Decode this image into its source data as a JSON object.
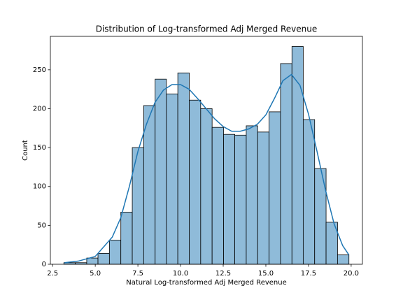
{
  "chart_data": {
    "type": "histogram",
    "title": "Distribution of Log-transformed Adj Merged Revenue",
    "xlabel": "Natural Log-transformed Adj Merged Revenue",
    "ylabel": "Count",
    "bins": [
      3.16,
      3.83,
      4.5,
      5.16,
      5.83,
      6.5,
      7.17,
      7.84,
      8.51,
      9.17,
      9.84,
      10.51,
      11.18,
      11.85,
      12.52,
      13.18,
      13.85,
      14.52,
      15.19,
      15.86,
      16.53,
      17.19,
      17.86,
      18.53,
      19.2,
      19.87
    ],
    "counts": [
      2,
      2,
      8,
      14,
      31,
      67,
      150,
      204,
      238,
      219,
      246,
      211,
      200,
      176,
      167,
      166,
      178,
      170,
      196,
      258,
      280,
      186,
      123,
      54,
      12
    ],
    "color": "#8fbbd9",
    "edgecolor": "#000000",
    "kde": {
      "color": "#1f77b4",
      "x": [
        3.2,
        4,
        5,
        6,
        6.5,
        7,
        7.5,
        8,
        8.5,
        9,
        9.5,
        10,
        10.5,
        11,
        11.5,
        12,
        12.5,
        13,
        13.5,
        14,
        14.5,
        15,
        15.5,
        16,
        16.5,
        17,
        17.5,
        18,
        18.5,
        19,
        19.5,
        19.87
      ],
      "y": [
        2,
        4,
        10,
        35,
        60,
        100,
        145,
        180,
        208,
        224,
        231,
        231,
        225,
        213,
        200,
        187,
        177,
        171,
        171,
        174,
        180,
        192,
        213,
        236,
        244,
        230,
        193,
        145,
        95,
        52,
        24,
        12
      ]
    },
    "xlim": [
      2.37,
      20.66
    ],
    "ylim": [
      0,
      293
    ],
    "xticks": [
      2.5,
      {
        "value": 5,
        "label": "5.0"
      },
      7.5,
      {
        "value": 10,
        "label": "10.0"
      },
      12.5,
      {
        "value": 15,
        "label": "15.0"
      },
      17.5,
      {
        "value": 20,
        "label": "20.0"
      }
    ],
    "yticks": [
      0,
      50,
      100,
      150,
      200,
      250
    ]
  }
}
